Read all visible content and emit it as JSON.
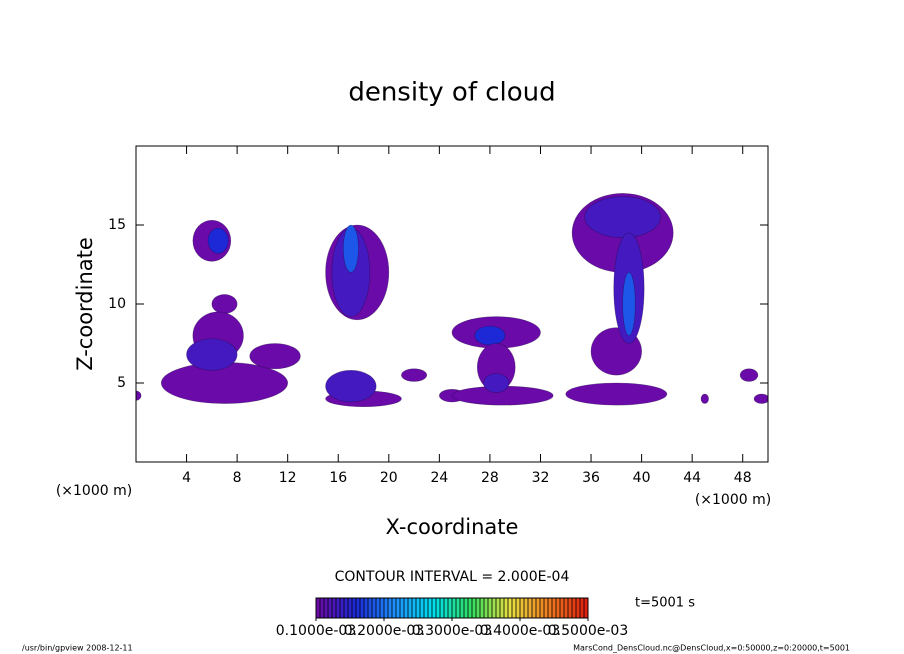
{
  "chart_data": {
    "type": "contour",
    "title": "density of cloud",
    "x_label": "X-coordinate",
    "y_label": "Z-coordinate",
    "x_unit": "(×1000 m)",
    "y_unit": "(×1000 m)",
    "xlim": [
      0,
      50
    ],
    "ylim": [
      0,
      20
    ],
    "xticks": [
      4,
      8,
      12,
      16,
      20,
      24,
      28,
      32,
      36,
      40,
      44,
      48
    ],
    "yticks": [
      5,
      10,
      15
    ],
    "contour_interval": "CONTOUR INTERVAL = 2.000E-04",
    "time_label": "t=5001 s",
    "colormap": [
      "#6a0aa8",
      "#1a2ad8",
      "#1e90ff",
      "#00e0f0",
      "#30e060",
      "#e8e040",
      "#f08020",
      "#e02010"
    ],
    "clim": [
      0.0001,
      0.0005
    ],
    "cticks": [
      {
        "value": 0.0001,
        "label": "0.1000e-03"
      },
      {
        "value": 0.0002,
        "label": "0.2000e-03"
      },
      {
        "value": 0.0003,
        "label": "0.3000e-03"
      },
      {
        "value": 0.0004,
        "label": "0.4000e-03"
      },
      {
        "value": 0.0005,
        "label": "0.5000e-03"
      }
    ],
    "patches": [
      {
        "x": 6,
        "z": 14,
        "rx": 1.5,
        "rz": 1.3,
        "level": 0.0001
      },
      {
        "x": 6.5,
        "z": 14,
        "rx": 0.8,
        "rz": 0.8,
        "level": 0.0002
      },
      {
        "x": 7,
        "z": 10,
        "rx": 1,
        "rz": 0.6,
        "level": 0.0001
      },
      {
        "x": 7,
        "z": 5,
        "rx": 5,
        "rz": 1.3,
        "level": 0.0001
      },
      {
        "x": 6.5,
        "z": 8,
        "rx": 2,
        "rz": 1.5,
        "level": 0.0001
      },
      {
        "x": 6,
        "z": 6.8,
        "rx": 2,
        "rz": 1,
        "level": 0.00015
      },
      {
        "x": 11,
        "z": 6.7,
        "rx": 2,
        "rz": 0.8,
        "level": 0.0001
      },
      {
        "x": 17.5,
        "z": 12,
        "rx": 2.5,
        "rz": 3,
        "level": 0.0001
      },
      {
        "x": 17,
        "z": 12,
        "rx": 1.5,
        "rz": 2.8,
        "level": 0.00015
      },
      {
        "x": 17,
        "z": 13.5,
        "rx": 0.6,
        "rz": 1.5,
        "level": 0.00025
      },
      {
        "x": 18,
        "z": 4,
        "rx": 3,
        "rz": 0.5,
        "level": 0.0001
      },
      {
        "x": 17,
        "z": 4.8,
        "rx": 2,
        "rz": 1,
        "level": 0.00015
      },
      {
        "x": 22,
        "z": 5.5,
        "rx": 1,
        "rz": 0.4,
        "level": 0.0001
      },
      {
        "x": 25,
        "z": 4.2,
        "rx": 1,
        "rz": 0.4,
        "level": 0.0001
      },
      {
        "x": 28.5,
        "z": 8.2,
        "rx": 3.5,
        "rz": 1,
        "level": 0.0001
      },
      {
        "x": 28,
        "z": 8,
        "rx": 1.2,
        "rz": 0.6,
        "level": 0.0002
      },
      {
        "x": 28.5,
        "z": 6,
        "rx": 1.5,
        "rz": 1.5,
        "level": 0.0001
      },
      {
        "x": 29,
        "z": 4.2,
        "rx": 4,
        "rz": 0.6,
        "level": 0.0001
      },
      {
        "x": 28.5,
        "z": 5,
        "rx": 1,
        "rz": 0.6,
        "level": 0.00015
      },
      {
        "x": 38.5,
        "z": 14.5,
        "rx": 4,
        "rz": 2.5,
        "level": 0.0001
      },
      {
        "x": 38.5,
        "z": 15.5,
        "rx": 3,
        "rz": 1.3,
        "level": 0.00015
      },
      {
        "x": 38,
        "z": 7,
        "rx": 2,
        "rz": 1.5,
        "level": 0.0001
      },
      {
        "x": 39,
        "z": 11,
        "rx": 1.2,
        "rz": 3.5,
        "level": 0.00015
      },
      {
        "x": 39,
        "z": 10,
        "rx": 0.5,
        "rz": 2,
        "level": 0.00025
      },
      {
        "x": 38,
        "z": 4.3,
        "rx": 4,
        "rz": 0.7,
        "level": 0.0001
      },
      {
        "x": 45,
        "z": 4,
        "rx": 0.3,
        "rz": 0.3,
        "level": 0.0001
      },
      {
        "x": 48.5,
        "z": 5.5,
        "rx": 0.7,
        "rz": 0.4,
        "level": 0.0001
      },
      {
        "x": 49.5,
        "z": 4,
        "rx": 0.6,
        "rz": 0.3,
        "level": 0.0001
      },
      {
        "x": 0,
        "z": 4.2,
        "rx": 0.4,
        "rz": 0.3,
        "level": 0.0001
      }
    ],
    "footer_left": "/usr/bin/gpview  2008-12-11",
    "footer_right": "MarsCond_DensCloud.nc@DensCloud,x=0:50000,z=0:20000,t=5001"
  }
}
